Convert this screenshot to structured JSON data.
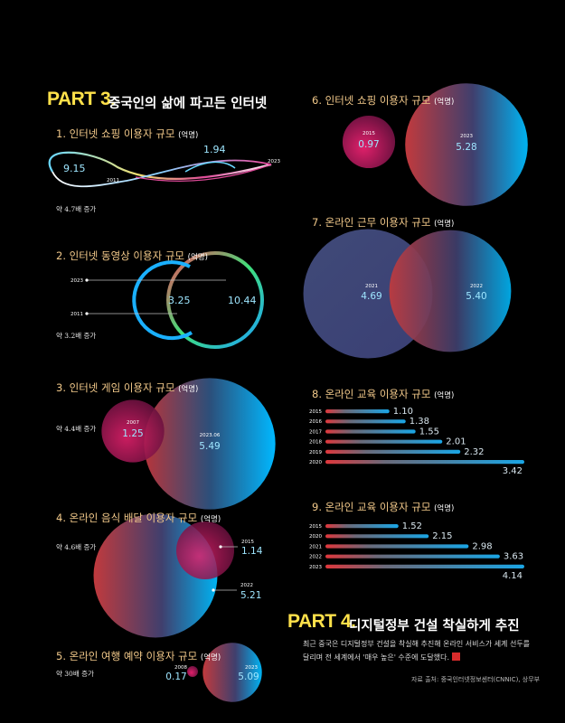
{
  "part3": {
    "label": "PART 3.",
    "title": "중국인의 삶에 파고든 인터넷"
  },
  "part4": {
    "label": "PART 4.",
    "title": "디지털정부 건설 착실하게 추진",
    "body_line1": "최근 중국은 디지털정부 건설을 착실해 추진해 온라인 서비스가 세계 선두를",
    "body_line2": "달리며 전 세계에서 '매우 높은' 수준에 도달했다."
  },
  "source": "자료 출처: 중국인터넷정보센터(CNNIC), 상무부",
  "unit": "(억명)",
  "colors": {
    "accent_yellow": "#ffe14a",
    "heading_orange": "#f2c98a",
    "blue": "#1aa6e6",
    "red": "#e0373c",
    "magenta": "#d1185f"
  },
  "chart_data": [
    {
      "id": "c1",
      "type": "line",
      "title": "1. 인터넷 쇼핑 이용자 규모",
      "unit": "(억명)",
      "x": [
        "2011",
        "2023"
      ],
      "values": [
        1.94,
        9.15
      ],
      "labels": {
        "start_value": "1.94",
        "end_value": "9.15",
        "start_year": "2011",
        "end_year": "2023"
      },
      "note": "약 4.7배 증가"
    },
    {
      "id": "c2",
      "type": "line",
      "title": "2. 인터넷 동영상 이용자 규모",
      "unit": "(억명)",
      "x": [
        "2011",
        "2023"
      ],
      "values": [
        3.25,
        10.44
      ],
      "labels": {
        "start_value": "3.25",
        "end_value": "10.44",
        "start_year": "2011",
        "end_year": "2023"
      },
      "note": "약 3.2배 증가"
    },
    {
      "id": "c3",
      "type": "scatter",
      "title": "3. 인터넷 게임 이용자 규모",
      "unit": "(억명)",
      "x": [
        "2007",
        "2023.06"
      ],
      "values": [
        1.25,
        5.49
      ],
      "labels": {
        "small_year": "2007",
        "small_value": "1.25",
        "big_year": "2023.06",
        "big_value": "5.49"
      },
      "note": "약 4.4배 증가"
    },
    {
      "id": "c4",
      "type": "scatter",
      "title": "4. 온라인 음식 배달 이용자 규모",
      "unit": "(억명)",
      "x": [
        "2015",
        "2022"
      ],
      "values": [
        1.14,
        5.21
      ],
      "labels": {
        "small_year": "2015",
        "small_value": "1.14",
        "big_year": "2022",
        "big_value": "5.21"
      },
      "note": "약 4.6배 증가"
    },
    {
      "id": "c5",
      "type": "scatter",
      "title": "5. 온라인 여행 예약 이용자 규모",
      "unit": "(억명)",
      "x": [
        "2008",
        "2023"
      ],
      "values": [
        0.17,
        5.09
      ],
      "labels": {
        "small_year": "2008",
        "small_value": "0.17",
        "big_year": "2023",
        "big_value": "5.09"
      },
      "note": "약 30배 증가"
    },
    {
      "id": "c6",
      "type": "scatter",
      "title": "6. 인터넷 쇼핑 이용자 규모",
      "unit": "(억명)",
      "x": [
        "2015",
        "2023"
      ],
      "values": [
        0.97,
        5.28
      ],
      "labels": {
        "small_year": "2015",
        "small_value": "0.97",
        "big_year": "2023",
        "big_value": "5.28"
      }
    },
    {
      "id": "c7",
      "type": "scatter",
      "title": "7. 온라인 근무 이용자 규모",
      "unit": "(억명)",
      "x": [
        "2021",
        "2022"
      ],
      "values": [
        4.69,
        5.4
      ],
      "labels": {
        "small_year": "2021",
        "small_value": "4.69",
        "big_year": "2022",
        "big_value": "5.40"
      }
    },
    {
      "id": "c8",
      "type": "bar",
      "title": "8. 온라인 교육 이용자 규모",
      "unit": "(억명)",
      "categories": [
        "2015",
        "2016",
        "2017",
        "2018",
        "2019",
        "2020"
      ],
      "values": [
        1.1,
        1.38,
        1.55,
        2.01,
        2.32,
        3.42
      ],
      "value_labels": [
        "1.10",
        "1.38",
        "1.55",
        "2.01",
        "2.32",
        "3.42"
      ]
    },
    {
      "id": "c9",
      "type": "bar",
      "title": "9. 온라인 교육 이용자 규모",
      "unit": "(억명)",
      "categories": [
        "2015",
        "2020",
        "2021",
        "2022",
        "2023"
      ],
      "values": [
        1.52,
        2.15,
        2.98,
        3.63,
        4.14
      ],
      "value_labels": [
        "1.52",
        "2.15",
        "2.98",
        "3.63",
        "4.14"
      ]
    }
  ]
}
